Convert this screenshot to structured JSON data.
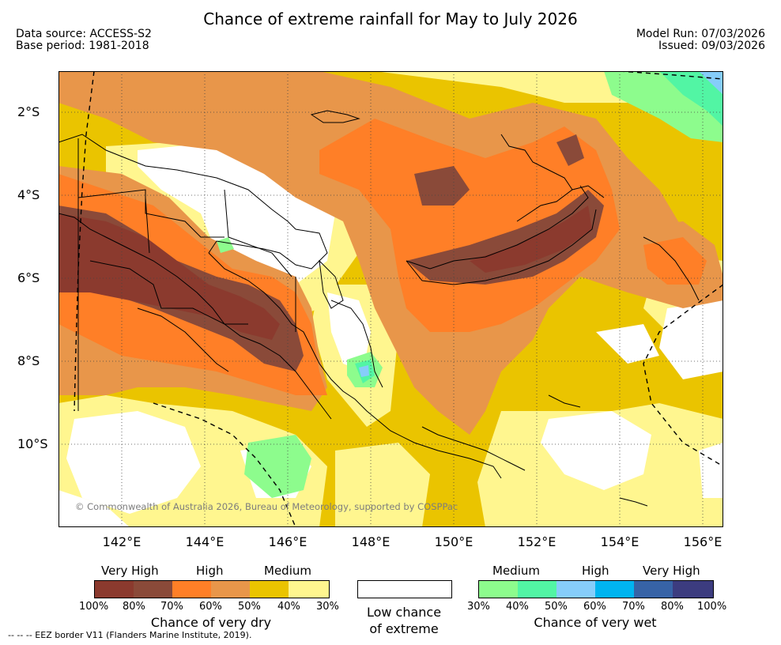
{
  "header": {
    "title": "Chance of extreme rainfall for May to July 2026",
    "data_source": "Data source: ACCESS-S2",
    "base_period": "Base period: 1981-2018",
    "model_run": "Model Run: 07/03/2026",
    "issued": "Issued: 09/03/2026"
  },
  "axes": {
    "x_ticks": [
      "142°E",
      "144°E",
      "146°E",
      "148°E",
      "150°E",
      "152°E",
      "154°E",
      "156°E"
    ],
    "y_ticks": [
      "2°S",
      "4°S",
      "6°S",
      "8°S",
      "10°S"
    ]
  },
  "credit": "© Commonwealth of Australia 2026, Bureau of Meteorology, supported by COSPPac",
  "legend": {
    "dry": {
      "labels": [
        "Very High",
        "High",
        "Medium"
      ],
      "colors": [
        "#8b3a2e",
        "#8a4a39",
        "#ff7f27",
        "#e8964a",
        "#eac400",
        "#fff68f"
      ],
      "percents": [
        "100%",
        "80%",
        "70%",
        "60%",
        "50%",
        "40%",
        "30%"
      ],
      "caption": "Chance of very dry"
    },
    "low": {
      "caption_line1": "Low chance",
      "caption_line2": "of extreme"
    },
    "wet": {
      "labels": [
        "Medium",
        "High",
        "Very High"
      ],
      "colors": [
        "#8dfc8d",
        "#52f5a4",
        "#86cdfa",
        "#00b4f0",
        "#3763a6",
        "#3c3c7f"
      ],
      "percents": [
        "30%",
        "40%",
        "50%",
        "60%",
        "70%",
        "80%",
        "100%"
      ],
      "caption": "Chance of very wet"
    }
  },
  "eez_note": "--  --  -- EEZ border V11 (Flanders Marine Institute, 2019)."
}
